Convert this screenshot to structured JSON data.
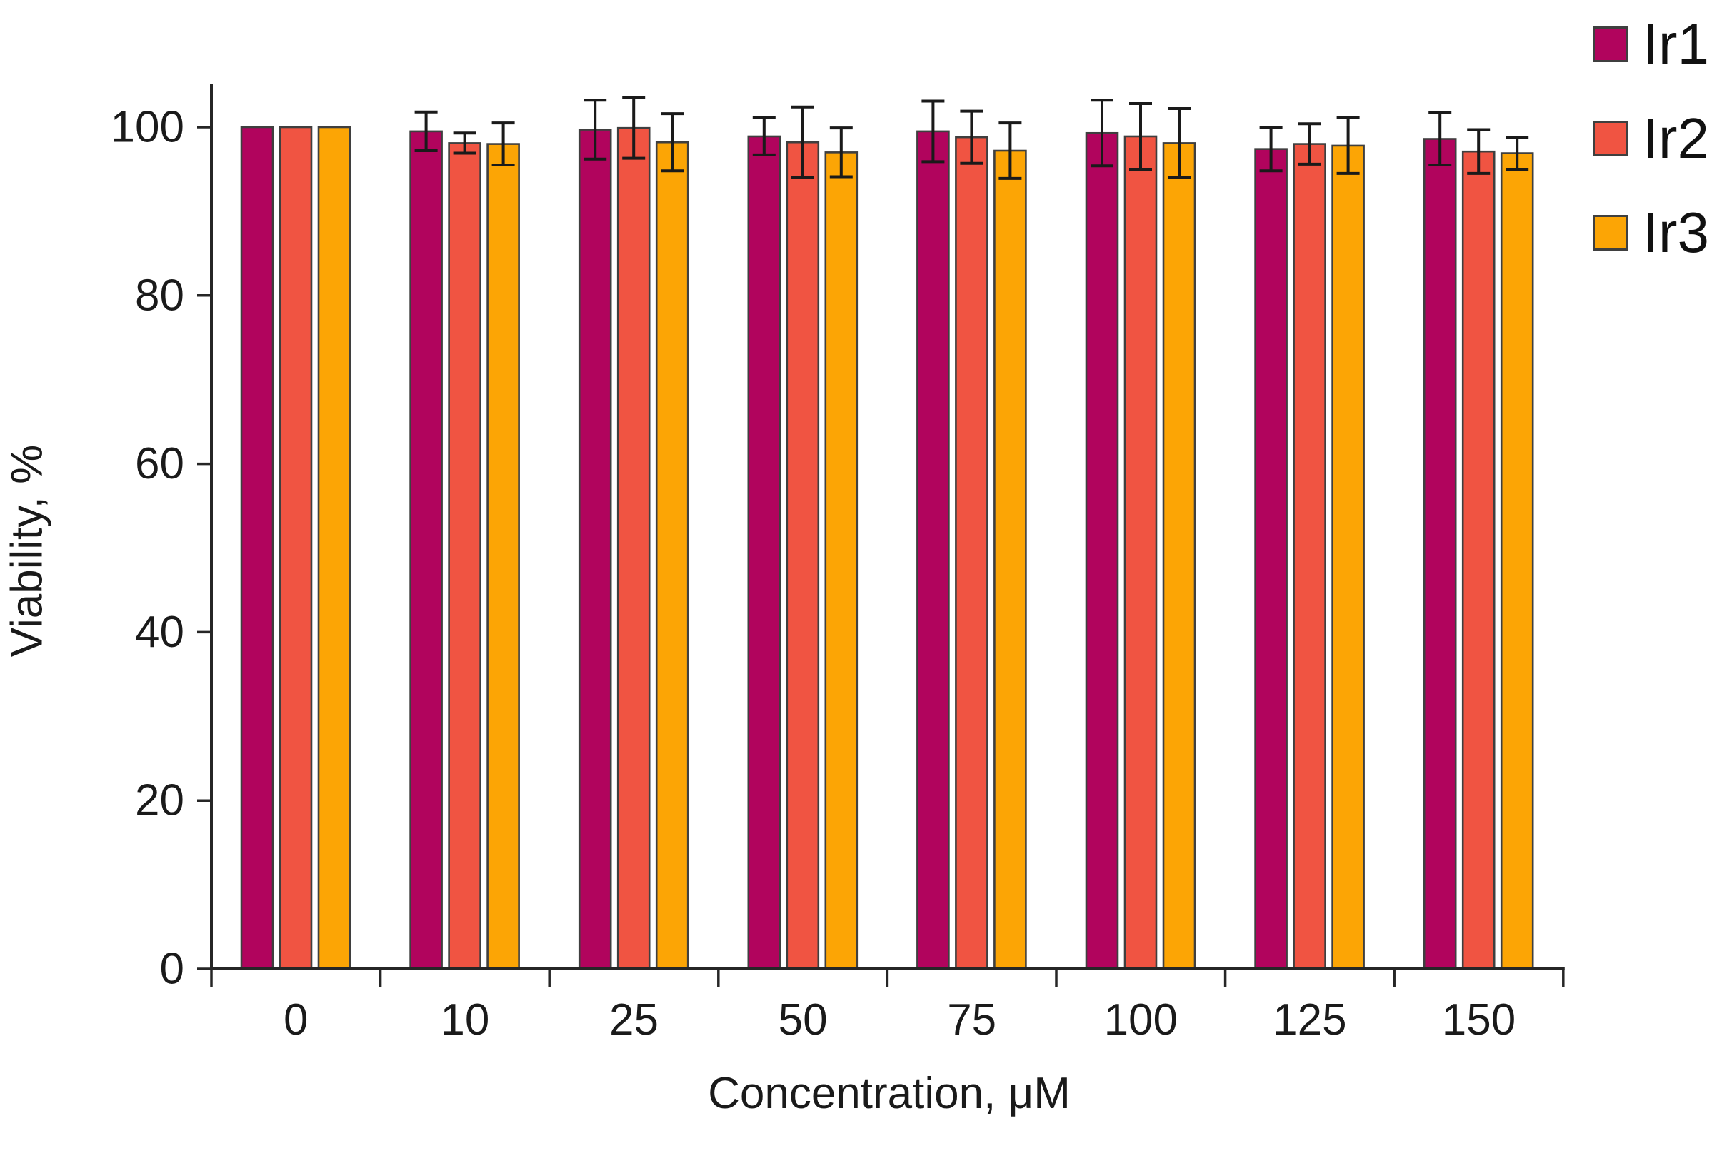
{
  "chart_data": {
    "type": "bar",
    "title": "",
    "xlabel": "Concentration, μM",
    "ylabel": "Viability, %",
    "categories": [
      "0",
      "10",
      "25",
      "50",
      "75",
      "100",
      "125",
      "150"
    ],
    "series": [
      {
        "name": "Ir1",
        "color": "#B1045D",
        "values": [
          100,
          99.5,
          99.7,
          98.9,
          99.5,
          99.3,
          97.4,
          98.6
        ],
        "errors": [
          0,
          2.3,
          3.5,
          2.2,
          3.6,
          3.9,
          2.6,
          3.1
        ]
      },
      {
        "name": "Ir2",
        "color": "#F05442",
        "values": [
          100,
          98.1,
          99.9,
          98.2,
          98.8,
          98.9,
          98.0,
          97.1
        ],
        "errors": [
          0,
          1.2,
          3.6,
          4.2,
          3.1,
          3.9,
          2.4,
          2.6
        ]
      },
      {
        "name": "Ir3",
        "color": "#FCA505",
        "values": [
          100,
          98.0,
          98.2,
          97.0,
          97.2,
          98.1,
          97.8,
          96.9
        ],
        "errors": [
          0,
          2.5,
          3.4,
          2.9,
          3.3,
          4.1,
          3.3,
          1.9
        ]
      }
    ],
    "ylim": [
      0,
      100
    ],
    "yticks": [
      0,
      20,
      40,
      60,
      80,
      100
    ],
    "grid": false,
    "legend_position": "top-right",
    "bar_outline_color": "#3F3F3F",
    "error_bar_color": "#1A1A1A",
    "axis_color": "#262626",
    "tick_label_color": "#1A1A1A"
  }
}
